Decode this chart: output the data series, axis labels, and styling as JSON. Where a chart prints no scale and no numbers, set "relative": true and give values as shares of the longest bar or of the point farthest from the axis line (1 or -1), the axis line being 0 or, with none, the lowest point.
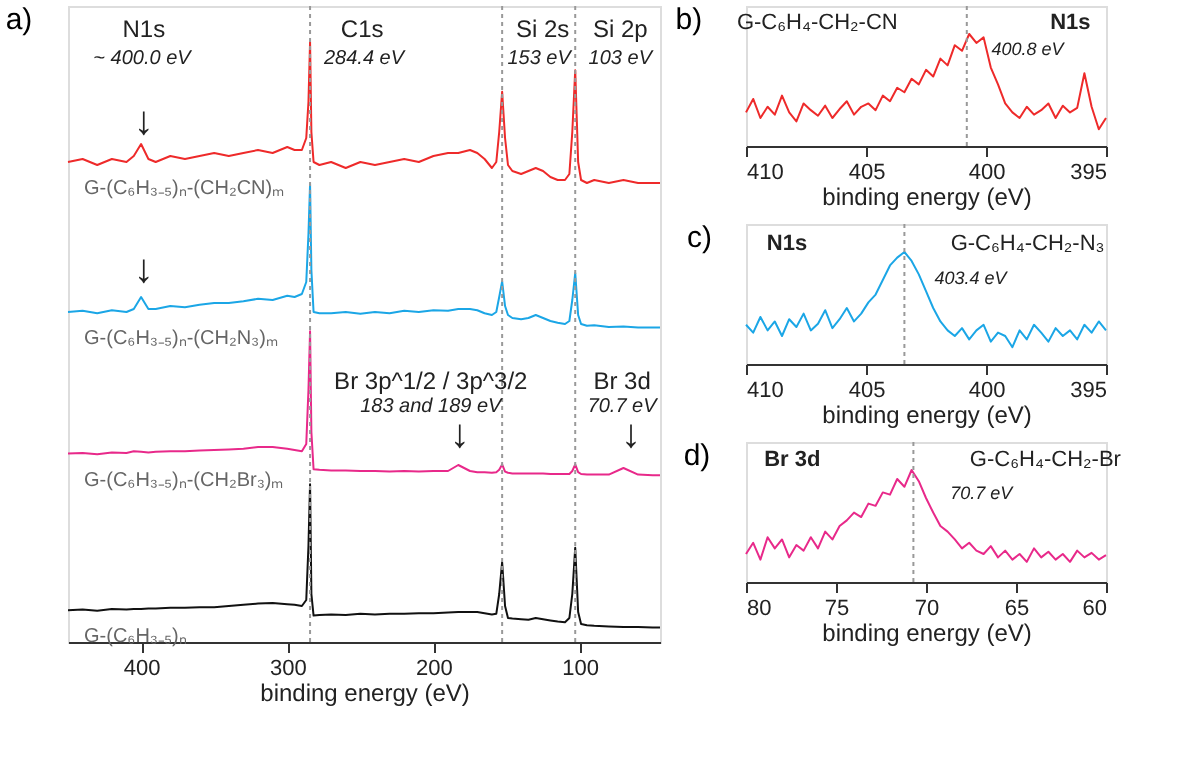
{
  "chart_data": [
    {
      "type": "line",
      "title": "a)",
      "xlabel": "binding energy (eV)",
      "relative": true,
      "xlim": [
        450,
        45
      ],
      "xticks": [
        400,
        300,
        200,
        100
      ],
      "x": [
        450,
        440,
        430,
        420,
        410,
        405,
        400,
        395,
        390,
        380,
        370,
        360,
        350,
        340,
        330,
        320,
        310,
        300,
        295,
        290,
        287,
        285.5,
        284.4,
        283.5,
        282,
        278,
        270,
        260,
        250,
        240,
        230,
        220,
        210,
        200,
        190,
        183,
        175,
        170,
        165,
        160,
        157,
        155,
        153,
        151,
        149,
        146,
        140,
        135,
        130,
        125,
        120,
        115,
        110,
        107,
        105,
        103,
        101,
        99,
        95,
        90,
        80,
        70,
        60,
        50,
        45
      ],
      "series": [
        {
          "name": "G-(C₆H₃₋₅)ₙ-(CH₂CN)ₘ",
          "color": "#ee2a2a",
          "values": [
            0.8,
            0.805,
            0.795,
            0.805,
            0.8,
            0.81,
            0.83,
            0.805,
            0.8,
            0.81,
            0.805,
            0.81,
            0.815,
            0.81,
            0.815,
            0.82,
            0.815,
            0.825,
            0.82,
            0.82,
            0.84,
            0.9,
            1.0,
            0.85,
            0.8,
            0.795,
            0.8,
            0.79,
            0.8,
            0.795,
            0.8,
            0.805,
            0.8,
            0.81,
            0.815,
            0.815,
            0.82,
            0.815,
            0.805,
            0.79,
            0.8,
            0.85,
            0.917,
            0.84,
            0.795,
            0.785,
            0.78,
            0.785,
            0.79,
            0.785,
            0.775,
            0.77,
            0.77,
            0.78,
            0.85,
            0.953,
            0.8,
            0.77,
            0.765,
            0.77,
            0.765,
            0.77,
            0.765,
            0.765,
            0.765
          ]
        },
        {
          "name": "G-(C₆H₃₋₅)ₙ-(CH₂N₃)ₘ",
          "color": "#1ba6e6",
          "values": [
            0.55,
            0.552,
            0.548,
            0.553,
            0.55,
            0.555,
            0.575,
            0.555,
            0.555,
            0.56,
            0.558,
            0.562,
            0.565,
            0.565,
            0.568,
            0.572,
            0.57,
            0.577,
            0.575,
            0.58,
            0.6,
            0.68,
            0.763,
            0.62,
            0.55,
            0.548,
            0.548,
            0.55,
            0.547,
            0.55,
            0.548,
            0.552,
            0.55,
            0.553,
            0.552,
            0.555,
            0.555,
            0.553,
            0.548,
            0.545,
            0.55,
            0.575,
            0.601,
            0.56,
            0.545,
            0.54,
            0.538,
            0.54,
            0.545,
            0.54,
            0.535,
            0.532,
            0.53,
            0.535,
            0.57,
            0.615,
            0.545,
            0.53,
            0.527,
            0.528,
            0.525,
            0.526,
            0.524,
            0.524,
            0.524
          ]
        },
        {
          "name": "G-(C₆H₃₋₅)ₙ-(CH₂Br₃)ₘ",
          "color": "#e8298a",
          "values": [
            0.314,
            0.315,
            0.313,
            0.316,
            0.315,
            0.318,
            0.317,
            0.316,
            0.317,
            0.318,
            0.318,
            0.319,
            0.32,
            0.321,
            0.322,
            0.325,
            0.325,
            0.322,
            0.32,
            0.318,
            0.33,
            0.42,
            0.518,
            0.35,
            0.288,
            0.287,
            0.286,
            0.286,
            0.285,
            0.285,
            0.284,
            0.285,
            0.284,
            0.285,
            0.285,
            0.295,
            0.285,
            0.283,
            0.283,
            0.282,
            0.283,
            0.287,
            0.296,
            0.284,
            0.282,
            0.281,
            0.281,
            0.281,
            0.281,
            0.281,
            0.28,
            0.28,
            0.28,
            0.28,
            0.285,
            0.296,
            0.283,
            0.28,
            0.279,
            0.279,
            0.279,
            0.29,
            0.279,
            0.278,
            0.278
          ]
        },
        {
          "name": "G-(C₆H₃₋₅)ₙ",
          "color": "#111111",
          "values": [
            0.053,
            0.054,
            0.052,
            0.055,
            0.054,
            0.055,
            0.055,
            0.056,
            0.056,
            0.057,
            0.057,
            0.058,
            0.058,
            0.06,
            0.062,
            0.064,
            0.065,
            0.063,
            0.062,
            0.06,
            0.07,
            0.16,
            0.263,
            0.08,
            0.044,
            0.045,
            0.046,
            0.045,
            0.047,
            0.046,
            0.047,
            0.047,
            0.048,
            0.048,
            0.049,
            0.05,
            0.05,
            0.05,
            0.048,
            0.046,
            0.047,
            0.08,
            0.133,
            0.06,
            0.04,
            0.039,
            0.038,
            0.037,
            0.04,
            0.038,
            0.036,
            0.034,
            0.033,
            0.04,
            0.08,
            0.157,
            0.05,
            0.03,
            0.028,
            0.027,
            0.026,
            0.025,
            0.025,
            0.024,
            0.024
          ]
        }
      ],
      "ref_lines": [
        {
          "axis": "x",
          "value": 284.4,
          "color": "#999999",
          "line_style": "dotted"
        },
        {
          "axis": "x",
          "value": 153,
          "color": "#999999",
          "line_style": "dotted"
        },
        {
          "axis": "x",
          "value": 103,
          "color": "#999999",
          "line_style": "dotted"
        }
      ],
      "annotations": [
        "N1s",
        "~ 400.0 eV",
        "↓",
        "↓",
        "C1s",
        "284.4 eV",
        "Si 2s",
        "153 eV",
        "Si 2p",
        "103 eV",
        "Br 3p^1/2 / 3p^3/2",
        "183 and 189 eV",
        "↓",
        "Br 3d",
        "70.7 eV",
        "↓"
      ]
    },
    {
      "type": "line",
      "title": "b)",
      "xlabel": "binding energy (eV)",
      "relative": true,
      "xlim": [
        410,
        395
      ],
      "xticks": [
        410,
        405,
        400,
        395
      ],
      "x": [
        410,
        409.7,
        409.4,
        409.1,
        408.8,
        408.5,
        408.2,
        407.9,
        407.6,
        407.3,
        407,
        406.7,
        406.4,
        406.1,
        405.8,
        405.5,
        405.2,
        404.9,
        404.6,
        404.3,
        404,
        403.7,
        403.4,
        403.1,
        402.8,
        402.5,
        402.2,
        401.9,
        401.6,
        401.3,
        401,
        400.7,
        400.4,
        400.1,
        399.8,
        399.5,
        399.2,
        398.9,
        398.6,
        398.3,
        398,
        397.7,
        397.4,
        397.1,
        396.8,
        396.5,
        396.2,
        395.9,
        395.6,
        395.3,
        395
      ],
      "series": [
        {
          "color": "#ee2a2a",
          "values": [
            0.3,
            0.42,
            0.25,
            0.35,
            0.28,
            0.45,
            0.3,
            0.22,
            0.38,
            0.32,
            0.27,
            0.36,
            0.25,
            0.33,
            0.4,
            0.28,
            0.35,
            0.38,
            0.32,
            0.45,
            0.4,
            0.52,
            0.48,
            0.6,
            0.55,
            0.68,
            0.62,
            0.78,
            0.72,
            0.9,
            0.85,
            1.0,
            0.92,
            0.97,
            0.7,
            0.55,
            0.38,
            0.3,
            0.25,
            0.35,
            0.28,
            0.32,
            0.38,
            0.25,
            0.36,
            0.3,
            0.34,
            0.65,
            0.35,
            0.15,
            0.25
          ]
        }
      ],
      "ref_lines": [
        {
          "axis": "x",
          "value": 400.8,
          "color": "#999999",
          "line_style": "dotted"
        }
      ],
      "annotations": [
        "G-C₆H₄-CH₂-CN",
        "N1s",
        "400.8 eV"
      ]
    },
    {
      "type": "line",
      "title": "c)",
      "xlabel": "binding energy (eV)",
      "relative": true,
      "xlim": [
        410,
        395
      ],
      "xticks": [
        410,
        405,
        400,
        395
      ],
      "x": [
        410,
        409.7,
        409.4,
        409.1,
        408.8,
        408.5,
        408.2,
        407.9,
        407.6,
        407.3,
        407,
        406.7,
        406.4,
        406.1,
        405.8,
        405.5,
        405.2,
        404.9,
        404.6,
        404.3,
        404,
        403.7,
        403.4,
        403.1,
        402.8,
        402.5,
        402.2,
        401.9,
        401.6,
        401.3,
        401,
        400.7,
        400.4,
        400.1,
        399.8,
        399.5,
        399.2,
        398.9,
        398.6,
        398.3,
        398,
        397.7,
        397.4,
        397.1,
        396.8,
        396.5,
        396.2,
        395.9,
        395.6,
        395.3,
        395
      ],
      "series": [
        {
          "color": "#1ba6e6",
          "values": [
            0.35,
            0.28,
            0.42,
            0.3,
            0.38,
            0.25,
            0.4,
            0.33,
            0.45,
            0.3,
            0.36,
            0.48,
            0.32,
            0.4,
            0.5,
            0.38,
            0.45,
            0.55,
            0.62,
            0.75,
            0.88,
            0.95,
            1.0,
            0.92,
            0.8,
            0.65,
            0.5,
            0.38,
            0.3,
            0.25,
            0.32,
            0.22,
            0.3,
            0.35,
            0.2,
            0.28,
            0.25,
            0.15,
            0.3,
            0.22,
            0.35,
            0.28,
            0.2,
            0.32,
            0.25,
            0.3,
            0.22,
            0.35,
            0.28,
            0.38,
            0.3
          ]
        }
      ],
      "ref_lines": [
        {
          "axis": "x",
          "value": 403.4,
          "color": "#999999",
          "line_style": "dotted"
        }
      ],
      "annotations": [
        "N1s",
        "G-C₆H₄-CH₂-N₃",
        "403.4 eV"
      ]
    },
    {
      "type": "line",
      "title": "d)",
      "xlabel": "binding energy (eV)",
      "relative": true,
      "xlim": [
        80,
        60
      ],
      "xticks": [
        80,
        75,
        70,
        65,
        60
      ],
      "x": [
        80,
        79.6,
        79.2,
        78.8,
        78.4,
        78,
        77.6,
        77.2,
        76.8,
        76.4,
        76,
        75.6,
        75.2,
        74.8,
        74.4,
        74,
        73.6,
        73.2,
        72.8,
        72.4,
        72,
        71.6,
        71.2,
        70.8,
        70.4,
        70,
        69.6,
        69.2,
        68.8,
        68.4,
        68,
        67.6,
        67.2,
        66.8,
        66.4,
        66,
        65.6,
        65.2,
        64.8,
        64.4,
        64,
        63.6,
        63.2,
        62.8,
        62.4,
        62,
        61.6,
        61.2,
        60.8,
        60.4,
        60
      ],
      "series": [
        {
          "color": "#e8298a",
          "values": [
            0.25,
            0.35,
            0.2,
            0.4,
            0.3,
            0.38,
            0.22,
            0.33,
            0.28,
            0.4,
            0.3,
            0.45,
            0.38,
            0.5,
            0.55,
            0.62,
            0.58,
            0.7,
            0.68,
            0.8,
            0.78,
            0.92,
            0.85,
            1.0,
            0.9,
            0.75,
            0.62,
            0.5,
            0.45,
            0.38,
            0.3,
            0.35,
            0.28,
            0.25,
            0.32,
            0.22,
            0.28,
            0.2,
            0.25,
            0.18,
            0.3,
            0.22,
            0.27,
            0.2,
            0.25,
            0.18,
            0.28,
            0.22,
            0.26,
            0.2,
            0.24
          ]
        }
      ],
      "ref_lines": [
        {
          "axis": "x",
          "value": 70.7,
          "color": "#999999",
          "line_style": "dotted"
        }
      ],
      "annotations": [
        "Br 3d",
        "G-C₆H₄-CH₂-Br",
        "70.7 eV"
      ]
    }
  ]
}
